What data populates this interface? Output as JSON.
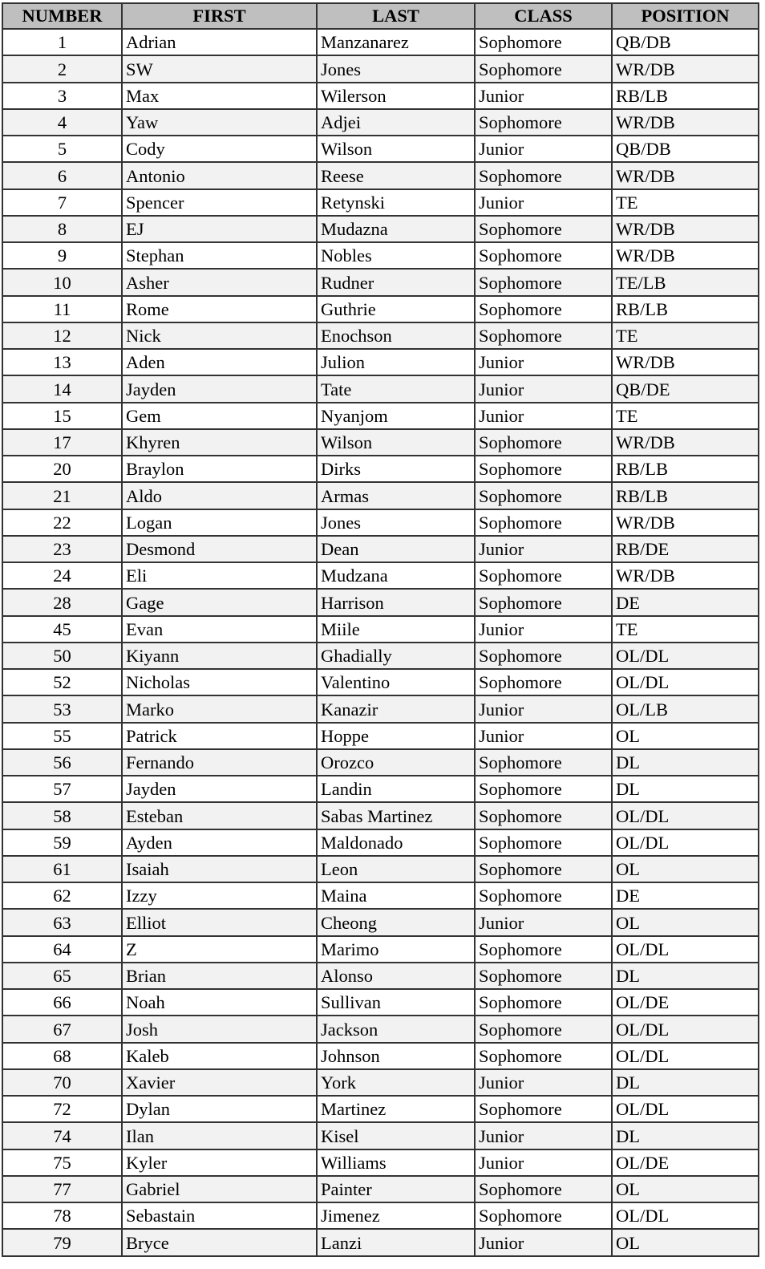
{
  "headers": [
    "NUMBER",
    "FIRST",
    "LAST",
    "CLASS",
    "POSITION"
  ],
  "colors": {
    "header_bg": "#bfbfbf",
    "alt_row_bg": "#f2f2f2",
    "border": "#333333"
  },
  "rows": [
    [
      "1",
      "Adrian",
      "Manzanarez",
      "Sophomore",
      "QB/DB"
    ],
    [
      "2",
      "SW",
      "Jones",
      "Sophomore",
      "WR/DB"
    ],
    [
      "3",
      "Max",
      "Wilerson",
      "Junior",
      "RB/LB"
    ],
    [
      "4",
      "Yaw",
      "Adjei",
      "Sophomore",
      "WR/DB"
    ],
    [
      "5",
      "Cody",
      "Wilson",
      "Junior",
      "QB/DB"
    ],
    [
      "6",
      "Antonio",
      "Reese",
      "Sophomore",
      "WR/DB"
    ],
    [
      "7",
      "Spencer",
      "Retynski",
      "Junior",
      "TE"
    ],
    [
      "8",
      "EJ",
      "Mudazna",
      "Sophomore",
      "WR/DB"
    ],
    [
      "9",
      "Stephan",
      "Nobles",
      "Sophomore",
      "WR/DB"
    ],
    [
      "10",
      "Asher",
      "Rudner",
      "Sophomore",
      "TE/LB"
    ],
    [
      "11",
      "Rome",
      "Guthrie",
      "Sophomore",
      "RB/LB"
    ],
    [
      "12",
      "Nick",
      "Enochson",
      "Sophomore",
      "TE"
    ],
    [
      "13",
      "Aden",
      "Julion",
      "Junior",
      "WR/DB"
    ],
    [
      "14",
      "Jayden",
      "Tate",
      "Junior",
      "QB/DE"
    ],
    [
      "15",
      "Gem",
      "Nyanjom",
      "Junior",
      "TE"
    ],
    [
      "17",
      "Khyren",
      "Wilson",
      "Sophomore",
      "WR/DB"
    ],
    [
      "20",
      "Braylon",
      "Dirks",
      "Sophomore",
      "RB/LB"
    ],
    [
      "21",
      "Aldo",
      "Armas",
      "Sophomore",
      "RB/LB"
    ],
    [
      "22",
      "Logan",
      "Jones",
      "Sophomore",
      "WR/DB"
    ],
    [
      "23",
      "Desmond",
      "Dean",
      "Junior",
      "RB/DE"
    ],
    [
      "24",
      "Eli",
      "Mudzana",
      "Sophomore",
      "WR/DB"
    ],
    [
      "28",
      "Gage",
      "Harrison",
      "Sophomore",
      "DE"
    ],
    [
      "45",
      "Evan",
      "Miile",
      "Junior",
      "TE"
    ],
    [
      "50",
      "Kiyann",
      "Ghadially",
      "Sophomore",
      "OL/DL"
    ],
    [
      "52",
      "Nicholas",
      "Valentino",
      "Sophomore",
      "OL/DL"
    ],
    [
      "53",
      "Marko",
      "Kanazir",
      "Junior",
      "OL/LB"
    ],
    [
      "55",
      "Patrick",
      "Hoppe",
      "Junior",
      "OL"
    ],
    [
      "56",
      "Fernando",
      "Orozco",
      "Sophomore",
      "DL"
    ],
    [
      "57",
      "Jayden",
      "Landin",
      "Sophomore",
      "DL"
    ],
    [
      "58",
      "Esteban",
      "Sabas Martinez",
      "Sophomore",
      "OL/DL"
    ],
    [
      "59",
      "Ayden",
      "Maldonado",
      "Sophomore",
      "OL/DL"
    ],
    [
      "61",
      "Isaiah",
      "Leon",
      "Sophomore",
      "OL"
    ],
    [
      "62",
      "Izzy",
      "Maina",
      "Sophomore",
      "DE"
    ],
    [
      "63",
      "Elliot",
      "Cheong",
      "Junior",
      "OL"
    ],
    [
      "64",
      "Z",
      "Marimo",
      "Sophomore",
      "OL/DL"
    ],
    [
      "65",
      "Brian",
      "Alonso",
      "Sophomore",
      "DL"
    ],
    [
      "66",
      "Noah",
      "Sullivan",
      "Sophomore",
      "OL/DE"
    ],
    [
      "67",
      "Josh",
      "Jackson",
      "Sophomore",
      "OL/DL"
    ],
    [
      "68",
      "Kaleb",
      "Johnson",
      "Sophomore",
      "OL/DL"
    ],
    [
      "70",
      "Xavier",
      "York",
      "Junior",
      "DL"
    ],
    [
      "72",
      "Dylan",
      "Martinez",
      "Sophomore",
      "OL/DL"
    ],
    [
      "74",
      "Ilan",
      "Kisel",
      "Junior",
      "DL"
    ],
    [
      "75",
      "Kyler",
      "Williams",
      "Junior",
      "OL/DE"
    ],
    [
      "77",
      "Gabriel",
      "Painter",
      "Sophomore",
      "OL"
    ],
    [
      "78",
      "Sebastain",
      "Jimenez",
      "Sophomore",
      "OL/DL"
    ],
    [
      "79",
      "Bryce",
      "Lanzi",
      "Junior",
      "OL"
    ]
  ]
}
